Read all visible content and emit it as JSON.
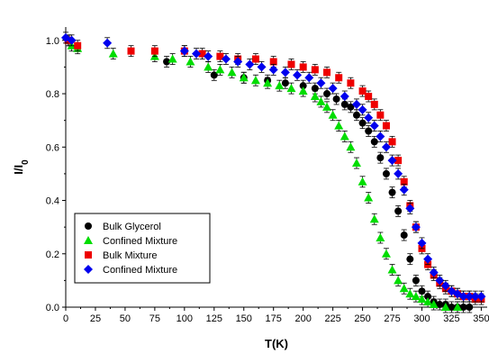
{
  "chart_data": {
    "type": "scatter",
    "xlabel": "T(K)",
    "ylabel": "I/I",
    "ylabel_sub": "0",
    "xlim": [
      0,
      355
    ],
    "ylim": [
      0,
      1.05
    ],
    "xticks": [
      "0",
      "25",
      "50",
      "75",
      "100",
      "125",
      "150",
      "175",
      "200",
      "225",
      "250",
      "275",
      "300",
      "325",
      "350"
    ],
    "yticks": [
      "0.0",
      "0.2",
      "0.4",
      "0.6",
      "0.8",
      "1.0"
    ],
    "legend_position": "bottom-left",
    "series": [
      {
        "name": "Bulk Glycerol",
        "marker": "circle",
        "color": "#000000",
        "x": [
          3,
          85,
          125,
          150,
          170,
          185,
          200,
          210,
          220,
          228,
          235,
          240,
          245,
          250,
          255,
          260,
          265,
          270,
          275,
          280,
          285,
          290,
          295,
          300,
          305,
          310,
          315,
          320,
          325,
          330,
          335,
          340
        ],
        "y": [
          1.0,
          0.92,
          0.87,
          0.86,
          0.85,
          0.84,
          0.83,
          0.82,
          0.8,
          0.78,
          0.76,
          0.75,
          0.72,
          0.69,
          0.66,
          0.62,
          0.56,
          0.5,
          0.43,
          0.36,
          0.27,
          0.18,
          0.1,
          0.06,
          0.04,
          0.02,
          0.01,
          0.01,
          0.0,
          0.0,
          0.0,
          0.0
        ]
      },
      {
        "name": "Confined Mixture",
        "marker": "triangle",
        "color": "#00dd00",
        "x": [
          5,
          10,
          40,
          75,
          90,
          105,
          120,
          130,
          140,
          150,
          160,
          170,
          180,
          190,
          200,
          210,
          215,
          220,
          225,
          230,
          235,
          240,
          245,
          250,
          255,
          260,
          265,
          270,
          275,
          280,
          285,
          290,
          295,
          300,
          305,
          310,
          320,
          330
        ],
        "y": [
          0.98,
          0.97,
          0.95,
          0.94,
          0.93,
          0.92,
          0.9,
          0.89,
          0.88,
          0.86,
          0.85,
          0.84,
          0.83,
          0.82,
          0.81,
          0.79,
          0.77,
          0.75,
          0.72,
          0.68,
          0.64,
          0.6,
          0.54,
          0.47,
          0.41,
          0.33,
          0.26,
          0.2,
          0.14,
          0.1,
          0.07,
          0.05,
          0.04,
          0.03,
          0.02,
          0.01,
          0.0,
          0.0
        ]
      },
      {
        "name": "Bulk Mixture",
        "marker": "square",
        "color": "#ee0000",
        "x": [
          2,
          10,
          55,
          75,
          100,
          115,
          130,
          145,
          160,
          175,
          190,
          200,
          210,
          220,
          230,
          240,
          250,
          255,
          260,
          265,
          270,
          275,
          280,
          285,
          290,
          295,
          300,
          305,
          310,
          315,
          320,
          325,
          330,
          335,
          340,
          345,
          350
        ],
        "y": [
          1.0,
          0.98,
          0.96,
          0.96,
          0.96,
          0.95,
          0.94,
          0.93,
          0.93,
          0.92,
          0.91,
          0.9,
          0.89,
          0.88,
          0.86,
          0.84,
          0.81,
          0.79,
          0.76,
          0.72,
          0.68,
          0.62,
          0.55,
          0.47,
          0.38,
          0.3,
          0.22,
          0.16,
          0.12,
          0.09,
          0.07,
          0.06,
          0.05,
          0.04,
          0.04,
          0.03,
          0.03
        ]
      },
      {
        "name": "Confined Mixture",
        "marker": "diamond",
        "color": "#0000ee",
        "x": [
          0,
          5,
          35,
          100,
          110,
          120,
          135,
          145,
          155,
          165,
          175,
          185,
          195,
          205,
          215,
          225,
          235,
          245,
          250,
          255,
          260,
          265,
          270,
          275,
          280,
          285,
          290,
          295,
          300,
          305,
          310,
          315,
          320,
          325,
          330,
          335,
          340,
          345,
          350
        ],
        "y": [
          1.01,
          1.0,
          0.99,
          0.96,
          0.95,
          0.94,
          0.93,
          0.92,
          0.91,
          0.9,
          0.89,
          0.88,
          0.87,
          0.86,
          0.84,
          0.82,
          0.79,
          0.76,
          0.74,
          0.71,
          0.68,
          0.64,
          0.6,
          0.55,
          0.5,
          0.44,
          0.37,
          0.3,
          0.24,
          0.18,
          0.13,
          0.1,
          0.08,
          0.06,
          0.05,
          0.04,
          0.04,
          0.04,
          0.04
        ]
      }
    ]
  }
}
